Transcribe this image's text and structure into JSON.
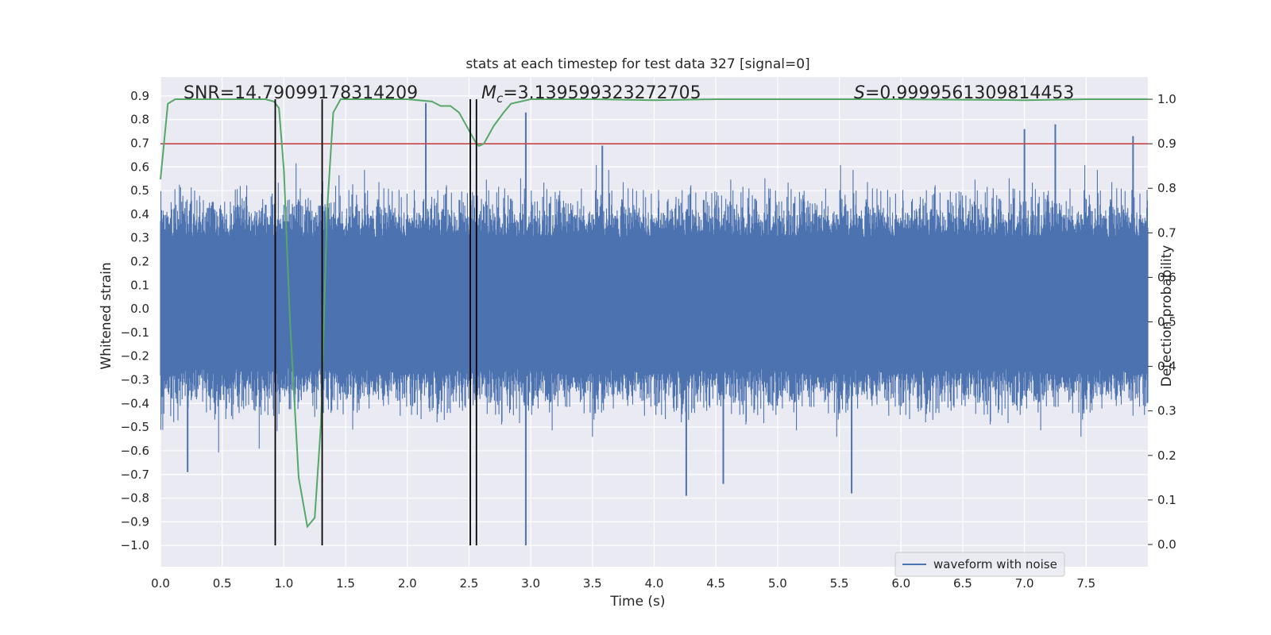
{
  "chart_data": {
    "type": "line",
    "title": "stats at each timestep for test data 327 [signal=0]",
    "xlabel": "Time (s)",
    "ylabel_left": "Whitened strain",
    "ylabel_right": "Detection probability",
    "xlim": [
      0.0,
      8.0
    ],
    "ylim_left": [
      -1.09,
      0.98
    ],
    "ylim_right": [
      -0.05,
      1.05
    ],
    "x_ticks": [
      0.0,
      0.5,
      1.0,
      1.5,
      2.0,
      2.5,
      3.0,
      3.5,
      4.0,
      4.5,
      5.0,
      5.5,
      6.0,
      6.5,
      7.0,
      7.5
    ],
    "x_tick_labels": [
      "0.0",
      "0.5",
      "1.0",
      "1.5",
      "2.0",
      "2.5",
      "3.0",
      "3.5",
      "4.0",
      "4.5",
      "5.0",
      "5.5",
      "6.0",
      "6.5",
      "7.0",
      "7.5"
    ],
    "y_left_ticks": [
      0.9,
      0.8,
      0.7,
      0.6,
      0.5,
      0.4,
      0.3,
      0.2,
      0.1,
      0.0,
      -0.1,
      -0.2,
      -0.3,
      -0.4,
      -0.5,
      -0.6,
      -0.7,
      -0.8,
      -0.9,
      -1.0
    ],
    "y_left_tick_labels": [
      "0.9",
      "0.8",
      "0.7",
      "0.6",
      "0.5",
      "0.4",
      "0.3",
      "0.2",
      "0.1",
      "0.0",
      "−0.1",
      "−0.2",
      "−0.3",
      "−0.4",
      "−0.5",
      "−0.6",
      "−0.7",
      "−0.8",
      "−0.9",
      "−1.0"
    ],
    "y_right_ticks": [
      1.0,
      0.9,
      0.8,
      0.7,
      0.6,
      0.5,
      0.4,
      0.3,
      0.2,
      0.1,
      0.0
    ],
    "y_right_tick_labels": [
      "1.0",
      "0.9",
      "0.8",
      "0.7",
      "0.6",
      "0.5",
      "0.4",
      "0.3",
      "0.2",
      "0.1",
      "0.0"
    ],
    "grid": true,
    "annotations": {
      "snr": "SNR=14.79099178314209",
      "mc_symbol": "M",
      "mc_sub": "c",
      "mc_value": "=3.139599323272705",
      "s_symbol": "S",
      "s_value": "=0.9999561309814453"
    },
    "legend": {
      "label": "waveform with noise",
      "location": "lower-right"
    },
    "waveform": {
      "name": "waveform with noise",
      "color": "#4c72b0",
      "duration_s": 8.0,
      "envelope_typical": 0.5,
      "dense_band": [
        -0.25,
        0.3
      ],
      "notable_peaks": [
        {
          "x": 0.22,
          "y": -0.69
        },
        {
          "x": 2.15,
          "y": 0.87
        },
        {
          "x": 2.96,
          "y": 0.83
        },
        {
          "x": 2.96,
          "y": -1.0
        },
        {
          "x": 3.58,
          "y": 0.69
        },
        {
          "x": 4.26,
          "y": -0.79
        },
        {
          "x": 4.56,
          "y": -0.74
        },
        {
          "x": 5.6,
          "y": -0.78
        },
        {
          "x": 7.0,
          "y": 0.76
        },
        {
          "x": 7.25,
          "y": 0.78
        },
        {
          "x": 7.88,
          "y": 0.73
        }
      ]
    },
    "detection_probability": {
      "name": "detection probability",
      "color": "#55a868",
      "x": [
        0.0,
        0.06,
        0.12,
        0.3,
        0.6,
        0.85,
        0.92,
        0.96,
        1.0,
        1.05,
        1.12,
        1.19,
        1.25,
        1.3,
        1.35,
        1.4,
        1.46,
        1.6,
        2.0,
        2.2,
        2.27,
        2.35,
        2.42,
        2.5,
        2.55,
        2.58,
        2.62,
        2.7,
        2.78,
        2.84,
        3.0,
        3.5,
        4.0,
        4.5,
        5.0,
        6.0,
        7.0,
        7.5,
        8.0
      ],
      "y": [
        0.82,
        0.99,
        1.0,
        1.0,
        1.0,
        1.0,
        0.995,
        0.98,
        0.84,
        0.5,
        0.15,
        0.04,
        0.06,
        0.27,
        0.75,
        0.97,
        1.0,
        1.0,
        1.0,
        0.995,
        0.985,
        0.985,
        0.97,
        0.93,
        0.905,
        0.895,
        0.9,
        0.94,
        0.97,
        0.99,
        1.0,
        1.0,
        0.998,
        1.0,
        1.0,
        1.0,
        0.998,
        1.0,
        1.0
      ]
    },
    "threshold": {
      "color": "#c44e52",
      "y_right": 0.9
    },
    "event_markers": {
      "color": "#000000",
      "x": [
        0.93,
        1.31,
        2.51,
        2.56
      ],
      "y_top_right": 1.0,
      "y_bottom_left": -1.0
    },
    "colors": {
      "plot_bg": "#eaeaf2",
      "grid": "#ffffff"
    }
  }
}
